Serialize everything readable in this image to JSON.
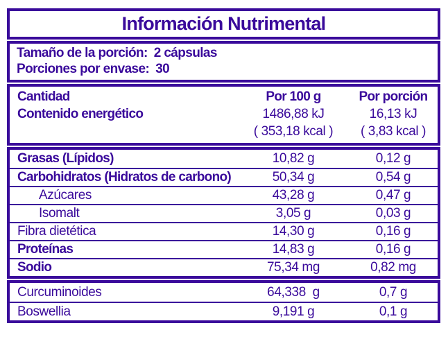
{
  "colors": {
    "purple": "#3A0A9B",
    "background": "#FFFFFF"
  },
  "title": "Información Nutrimental",
  "serving": {
    "size_label": "Tamaño de la porción:",
    "size_value": "2 cápsulas",
    "per_container_label": "Porciones por envase:",
    "per_container_value": "30"
  },
  "energy": {
    "amount_header": "Cantidad",
    "energy_label": "Contenido energético",
    "per_100g_header": "Por 100 g",
    "per_portion_header": "Por porción",
    "kj_per_100g": "1486,88 kJ",
    "kj_per_portion": "16,13 kJ",
    "kcal_per_100g": "( 353,18 kcal )",
    "kcal_per_portion": "( 3,83 kcal )"
  },
  "nutrients": {
    "rows": [
      {
        "label": "Grasas (Lípidos)",
        "per_100g": "10,82 g",
        "per_portion": "0,12 g"
      },
      {
        "label": "Carbohidratos (Hidratos de carbono)",
        "per_100g": "50,34 g",
        "per_portion": "0,54 g"
      },
      {
        "label": "Azúcares",
        "per_100g": "43,28 g",
        "per_portion": "0,47 g"
      },
      {
        "label": "Isomalt",
        "per_100g": "3,05 g",
        "per_portion": "0,03 g"
      },
      {
        "label": "Fibra dietética",
        "per_100g": "14,30 g",
        "per_portion": "0,16 g"
      },
      {
        "label": "Proteínas",
        "per_100g": "14,83 g",
        "per_portion": "0,16 g"
      },
      {
        "label": "Sodio",
        "per_100g": "75,34 mg",
        "per_portion": "0,82 mg"
      }
    ]
  },
  "extras": {
    "rows": [
      {
        "label": "Curcuminoides",
        "per_100g": "64,338  g",
        "per_portion": "0,7 g"
      },
      {
        "label": "Boswellia",
        "per_100g": "9,191 g",
        "per_portion": "0,1 g"
      }
    ]
  }
}
